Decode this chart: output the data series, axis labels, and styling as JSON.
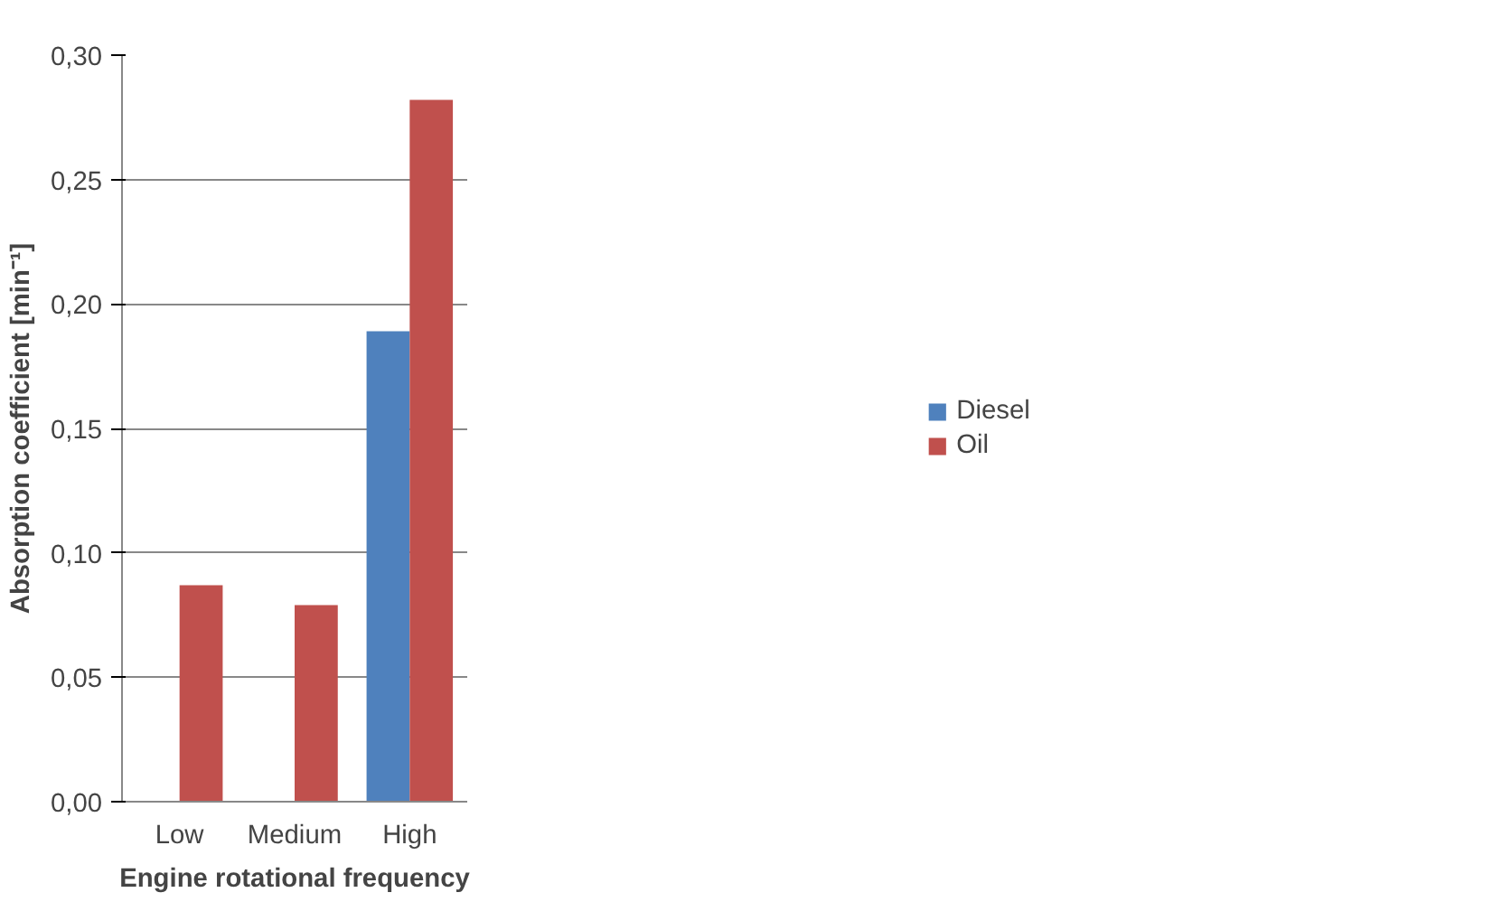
{
  "chart_data": {
    "type": "bar",
    "xlabel": "Engine rotational frequency",
    "ylabel": "Absorption coefficient [min⁻¹]",
    "categories": [
      "Low",
      "Medium",
      "High"
    ],
    "series": [
      {
        "name": "Diesel",
        "color": "#4f81bd",
        "values": [
          0,
          0,
          0.189
        ]
      },
      {
        "name": "Oil",
        "color": "#c0504d",
        "values": [
          0.087,
          0.079,
          0.282
        ]
      }
    ],
    "ylim": [
      0,
      0.3
    ],
    "yticks": [
      {
        "value": 0,
        "label": "0,00"
      },
      {
        "value": 0.05,
        "label": "0,05"
      },
      {
        "value": 0.1,
        "label": "0,10"
      },
      {
        "value": 0.15,
        "label": "0,15"
      },
      {
        "value": 0.2,
        "label": "0,20"
      },
      {
        "value": 0.25,
        "label": "0,25"
      },
      {
        "value": 0.3,
        "label": "0,30"
      }
    ],
    "grid": "y",
    "legend": "right"
  }
}
